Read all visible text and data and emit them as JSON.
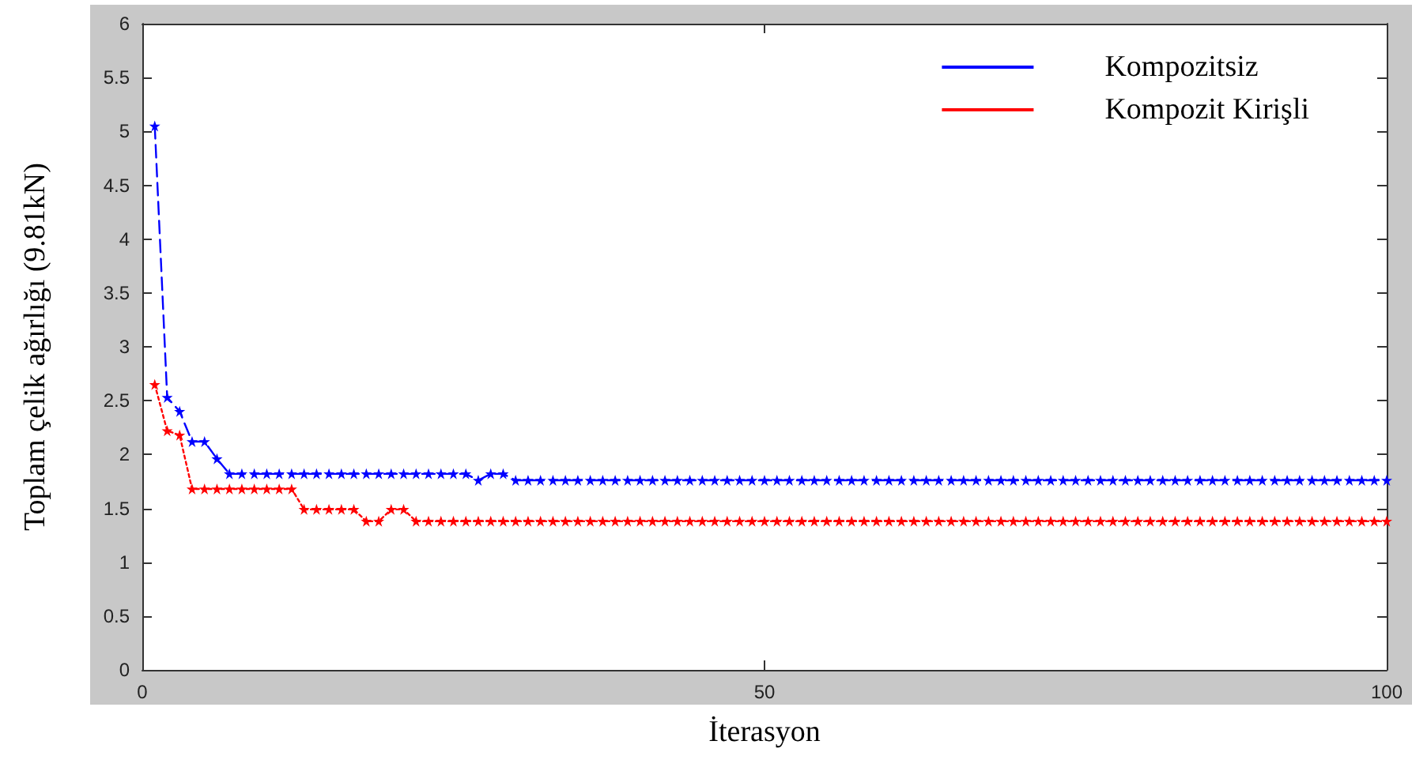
{
  "chart_data": {
    "type": "line",
    "xlabel": "İterasyon",
    "ylabel": "Toplam çelik ağırlığı (9.81kN)",
    "xlim": [
      0,
      100
    ],
    "xticks": [
      0,
      50,
      100
    ],
    "ylim": [
      0,
      6
    ],
    "yticks": [
      0,
      0.5,
      1,
      1.5,
      2,
      2.5,
      3,
      3.5,
      4,
      4.5,
      5,
      5.5,
      6
    ],
    "grid": false,
    "legend": "top right",
    "marker": "star",
    "series": [
      {
        "name": "Kompozitsiz",
        "color": "#0000ff",
        "line_style": "dashed",
        "x": [
          1,
          2,
          3,
          4,
          5,
          6,
          7,
          8,
          9,
          10,
          11,
          12,
          13,
          14,
          15,
          16,
          17,
          18,
          19,
          20,
          21,
          22,
          23,
          24,
          25,
          26,
          27,
          28,
          29,
          30,
          31,
          32,
          33,
          34,
          35,
          36,
          37,
          38,
          39,
          40,
          41,
          42,
          43,
          44,
          45,
          46,
          47,
          48,
          49,
          50,
          51,
          52,
          53,
          54,
          55,
          56,
          57,
          58,
          59,
          60,
          61,
          62,
          63,
          64,
          65,
          66,
          67,
          68,
          69,
          70,
          71,
          72,
          73,
          74,
          75,
          76,
          77,
          78,
          79,
          80,
          81,
          82,
          83,
          84,
          85,
          86,
          87,
          88,
          89,
          90,
          91,
          92,
          93,
          94,
          95,
          96,
          97,
          98,
          99,
          100
        ],
        "values": [
          5.05,
          2.53,
          2.4,
          2.12,
          2.12,
          1.96,
          1.82,
          1.82,
          1.82,
          1.82,
          1.82,
          1.82,
          1.82,
          1.82,
          1.82,
          1.82,
          1.82,
          1.82,
          1.82,
          1.82,
          1.82,
          1.82,
          1.82,
          1.82,
          1.82,
          1.82,
          1.76,
          1.82,
          1.82,
          1.76,
          1.76,
          1.76,
          1.76,
          1.76,
          1.76,
          1.76,
          1.76,
          1.76,
          1.76,
          1.76,
          1.76,
          1.76,
          1.76,
          1.76,
          1.76,
          1.76,
          1.76,
          1.76,
          1.76,
          1.76,
          1.76,
          1.76,
          1.76,
          1.76,
          1.76,
          1.76,
          1.76,
          1.76,
          1.76,
          1.76,
          1.76,
          1.76,
          1.76,
          1.76,
          1.76,
          1.76,
          1.76,
          1.76,
          1.76,
          1.76,
          1.76,
          1.76,
          1.76,
          1.76,
          1.76,
          1.76,
          1.76,
          1.76,
          1.76,
          1.76,
          1.76,
          1.76,
          1.76,
          1.76,
          1.76,
          1.76,
          1.76,
          1.76,
          1.76,
          1.76,
          1.76,
          1.76,
          1.76,
          1.76,
          1.76,
          1.76,
          1.76,
          1.76,
          1.76,
          1.76
        ]
      },
      {
        "name": "Kompozit Kirişli",
        "color": "#ff0000",
        "line_style": "dotted",
        "x": [
          1,
          2,
          3,
          4,
          5,
          6,
          7,
          8,
          9,
          10,
          11,
          12,
          13,
          14,
          15,
          16,
          17,
          18,
          19,
          20,
          21,
          22,
          23,
          24,
          25,
          26,
          27,
          28,
          29,
          30,
          31,
          32,
          33,
          34,
          35,
          36,
          37,
          38,
          39,
          40,
          41,
          42,
          43,
          44,
          45,
          46,
          47,
          48,
          49,
          50,
          51,
          52,
          53,
          54,
          55,
          56,
          57,
          58,
          59,
          60,
          61,
          62,
          63,
          64,
          65,
          66,
          67,
          68,
          69,
          70,
          71,
          72,
          73,
          74,
          75,
          76,
          77,
          78,
          79,
          80,
          81,
          82,
          83,
          84,
          85,
          86,
          87,
          88,
          89,
          90,
          91,
          92,
          93,
          94,
          95,
          96,
          97,
          98,
          99,
          100
        ],
        "values": [
          2.65,
          2.22,
          2.18,
          1.68,
          1.68,
          1.68,
          1.68,
          1.68,
          1.68,
          1.68,
          1.68,
          1.68,
          1.49,
          1.49,
          1.49,
          1.49,
          1.49,
          1.38,
          1.38,
          1.49,
          1.49,
          1.38,
          1.38,
          1.38,
          1.38,
          1.38,
          1.38,
          1.38,
          1.38,
          1.38,
          1.38,
          1.38,
          1.38,
          1.38,
          1.38,
          1.38,
          1.38,
          1.38,
          1.38,
          1.38,
          1.38,
          1.38,
          1.38,
          1.38,
          1.38,
          1.38,
          1.38,
          1.38,
          1.38,
          1.38,
          1.38,
          1.38,
          1.38,
          1.38,
          1.38,
          1.38,
          1.38,
          1.38,
          1.38,
          1.38,
          1.38,
          1.38,
          1.38,
          1.38,
          1.38,
          1.38,
          1.38,
          1.38,
          1.38,
          1.38,
          1.38,
          1.38,
          1.38,
          1.38,
          1.38,
          1.38,
          1.38,
          1.38,
          1.38,
          1.38,
          1.38,
          1.38,
          1.38,
          1.38,
          1.38,
          1.38,
          1.38,
          1.38,
          1.38,
          1.38,
          1.38,
          1.38,
          1.38,
          1.38,
          1.38,
          1.38,
          1.38,
          1.38,
          1.38,
          1.38
        ]
      }
    ]
  }
}
